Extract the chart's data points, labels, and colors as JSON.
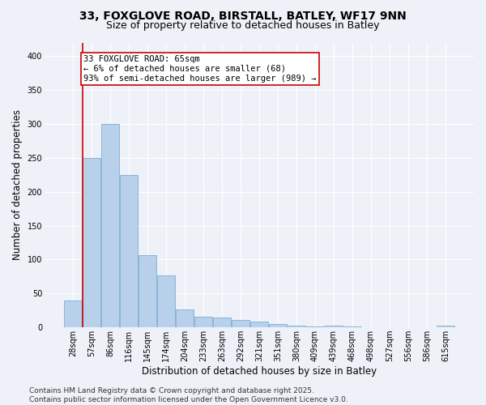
{
  "title_line1": "33, FOXGLOVE ROAD, BIRSTALL, BATLEY, WF17 9NN",
  "title_line2": "Size of property relative to detached houses in Batley",
  "xlabel": "Distribution of detached houses by size in Batley",
  "ylabel": "Number of detached properties",
  "categories": [
    "28sqm",
    "57sqm",
    "86sqm",
    "116sqm",
    "145sqm",
    "174sqm",
    "204sqm",
    "233sqm",
    "263sqm",
    "292sqm",
    "321sqm",
    "351sqm",
    "380sqm",
    "409sqm",
    "439sqm",
    "468sqm",
    "498sqm",
    "527sqm",
    "556sqm",
    "586sqm",
    "615sqm"
  ],
  "values": [
    40,
    250,
    300,
    225,
    107,
    77,
    27,
    16,
    14,
    11,
    8,
    5,
    2,
    1,
    3,
    1,
    0,
    0,
    0,
    0,
    2
  ],
  "bar_color": "#b8d0ea",
  "bar_edge_color": "#7aafd4",
  "marker_line_color": "#cc0000",
  "annotation_text": "33 FOXGLOVE ROAD: 65sqm\n← 6% of detached houses are smaller (68)\n93% of semi-detached houses are larger (989) →",
  "annotation_box_facecolor": "#ffffff",
  "annotation_box_edgecolor": "#cc0000",
  "ylim": [
    0,
    420
  ],
  "yticks": [
    0,
    50,
    100,
    150,
    200,
    250,
    300,
    350,
    400
  ],
  "footer_text": "Contains HM Land Registry data © Crown copyright and database right 2025.\nContains public sector information licensed under the Open Government Licence v3.0.",
  "background_color": "#eef2f8",
  "plot_background_color": "#eef2f8",
  "title_fontsize": 10,
  "subtitle_fontsize": 9,
  "axis_label_fontsize": 8.5,
  "tick_label_fontsize": 7,
  "footer_fontsize": 6.5,
  "annotation_fontsize": 7.5,
  "marker_bar_index": 1
}
